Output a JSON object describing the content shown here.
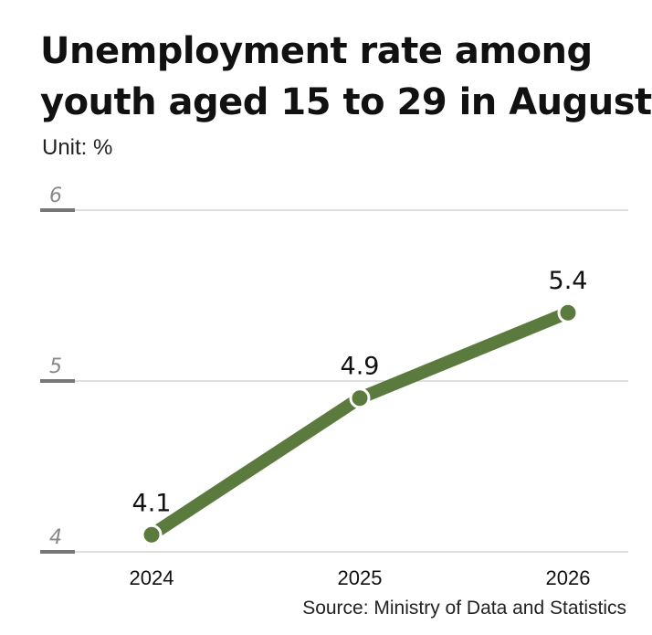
{
  "title_lines": [
    "Unemployment rate among",
    "youth aged 15 to 29 in August"
  ],
  "unit": "Unit: %",
  "source": "Source: Ministry of Data and Statistics",
  "colors": {
    "line": "#5a7a3e",
    "grid": "#cccccc",
    "tick_mark": "#777777",
    "tick_text": "#888888",
    "text": "#111111"
  },
  "chart_data": {
    "type": "line",
    "title": "Unemployment rate among youth aged 15 to 29 in August",
    "xlabel": "",
    "ylabel": "",
    "unit": "%",
    "categories": [
      "2024",
      "2025",
      "2026"
    ],
    "series": [
      {
        "values": [
          4.1,
          4.9,
          5.4
        ],
        "labels": [
          "4.1",
          "4.9",
          "5.4"
        ]
      }
    ],
    "ylim": [
      4,
      6
    ],
    "yticks": [
      4,
      5,
      6
    ],
    "ytick_labels": [
      "4",
      "5",
      "6"
    ],
    "grid": true,
    "legend": "none"
  }
}
